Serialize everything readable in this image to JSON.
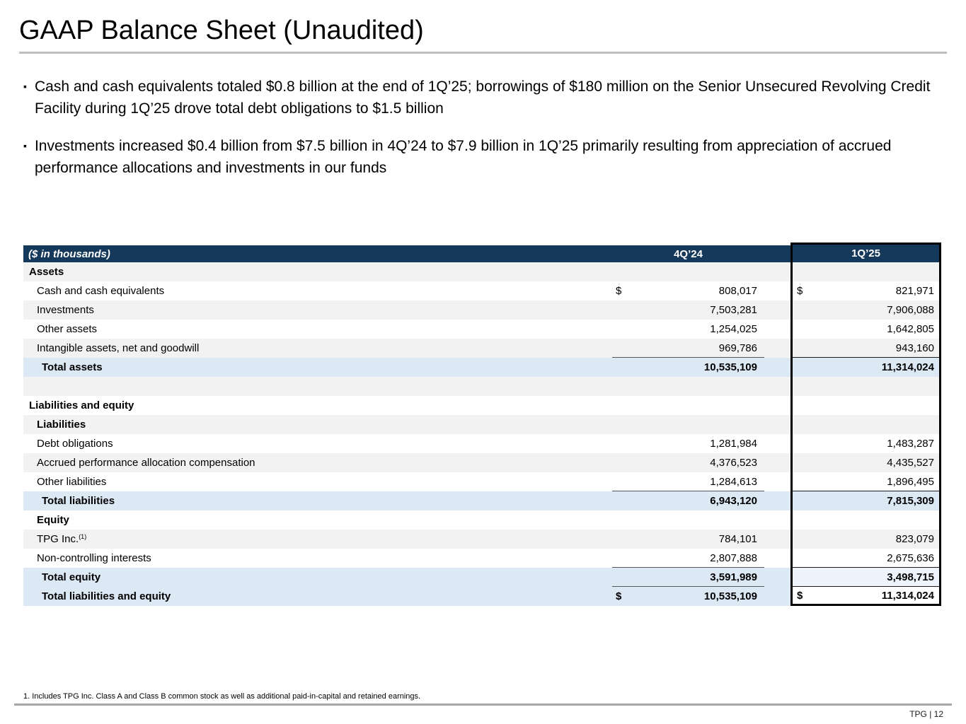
{
  "slide": {
    "title": "GAAP Balance Sheet (Unaudited)",
    "bullets": [
      "Cash and cash equivalents totaled $0.8 billion at the end of 1Q’25; borrowings of $180 million on the Senior Unsecured Revolving Credit Facility during 1Q’25 drove total debt obligations to $1.5 billion",
      "Investments increased $0.4 billion from $7.5 billion in 4Q’24 to $7.9 billion in 1Q’25 primarily resulting from appreciation of accrued performance allocations and investments in our funds"
    ],
    "footnote": "1. Includes TPG Inc. Class A and Class B common stock as well as additional paid-in-capital and retained earnings.",
    "page_label": "TPG | 12"
  },
  "colors": {
    "header_bg": "#14395B",
    "total_row_bg": "#DCE9F5",
    "stripe_bg": "#F2F2F2",
    "highlight_box_border": "#000000",
    "title_rule": "#BFBFBF"
  },
  "table": {
    "unit_label": "($ in thousands)",
    "columns": [
      "4Q’24",
      "1Q’25"
    ],
    "rows": [
      {
        "type": "section",
        "label": "Assets",
        "indent": 0,
        "bg": "gray"
      },
      {
        "type": "data",
        "label": "Cash and cash equivalents",
        "indent": 1,
        "bg": "white",
        "d1": "$",
        "v1": "808,017",
        "d2": "$",
        "v2": "821,971"
      },
      {
        "type": "data",
        "label": "Investments",
        "indent": 1,
        "bg": "gray",
        "v1": "7,503,281",
        "v2": "7,906,088"
      },
      {
        "type": "data",
        "label": "Other assets",
        "indent": 1,
        "bg": "white",
        "v1": "1,254,025",
        "v2": "1,642,805"
      },
      {
        "type": "data",
        "label": "Intangible assets, net and goodwill",
        "indent": 1,
        "bg": "gray",
        "v1": "969,786",
        "v2": "943,160",
        "line": true
      },
      {
        "type": "total",
        "label": "Total assets",
        "indent": 2,
        "bg": "blue",
        "v1": "10,535,109",
        "v2": "11,314,024",
        "bold": true
      },
      {
        "type": "spacer",
        "label": "",
        "indent": 0,
        "bg": "gray"
      },
      {
        "type": "section",
        "label": "Liabilities and equity",
        "indent": 0,
        "bg": "white"
      },
      {
        "type": "section",
        "label": "Liabilities",
        "indent": 1,
        "bg": "gray"
      },
      {
        "type": "data",
        "label": "Debt obligations",
        "indent": 1,
        "bg": "white",
        "v1": "1,281,984",
        "v2": "1,483,287"
      },
      {
        "type": "data",
        "label": "Accrued performance allocation compensation",
        "indent": 1,
        "bg": "gray",
        "v1": "4,376,523",
        "v2": "4,435,527"
      },
      {
        "type": "data",
        "label": "Other liabilities",
        "indent": 1,
        "bg": "white",
        "v1": "1,284,613",
        "v2": "1,896,495",
        "line": true
      },
      {
        "type": "total",
        "label": "Total liabilities",
        "indent": 2,
        "bg": "blue",
        "v1": "6,943,120",
        "v2": "7,815,309",
        "bold": true
      },
      {
        "type": "section",
        "label": "Equity",
        "indent": 1,
        "bg": "white"
      },
      {
        "type": "data",
        "label": "TPG Inc.",
        "sup": "(1)",
        "indent": 1,
        "bg": "gray",
        "v1": "784,101",
        "v2": "823,079"
      },
      {
        "type": "data",
        "label": "Non-controlling interests",
        "indent": 1,
        "bg": "white",
        "v1": "2,807,888",
        "v2": "2,675,636",
        "line": true
      },
      {
        "type": "total",
        "label": "Total equity",
        "indent": 2,
        "bg": "blue",
        "v1": "3,591,989",
        "v2": "3,498,715",
        "bold": true,
        "line": true,
        "box_bg": "#EDF3FB"
      },
      {
        "type": "total",
        "label": "Total liabilities and equity",
        "indent": 2,
        "bg": "blue",
        "d1": "$",
        "v1": "10,535,109",
        "d2": "$",
        "v2": "11,314,024",
        "bold": true,
        "box_bg": "#FFFFFF"
      }
    ]
  }
}
